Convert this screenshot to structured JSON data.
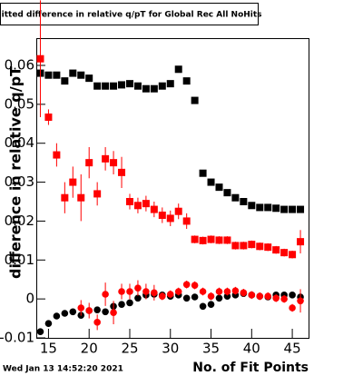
{
  "chart_data": {
    "type": "scatter",
    "title": "Fitted difference in relative q/pT for Global Rec All NoHits",
    "x_label": "No. of Fit Points",
    "y_label": "difference in relative q/pT",
    "timestamp": "Wed Jan 13 14:52:20 2021",
    "x": [
      14,
      15,
      16,
      17,
      18,
      19,
      20,
      21,
      22,
      23,
      24,
      25,
      26,
      27,
      28,
      29,
      30,
      31,
      32,
      33,
      34,
      35,
      36,
      37,
      38,
      39,
      40,
      41,
      42,
      43,
      44,
      45,
      46
    ],
    "xlim": [
      13.5,
      47
    ],
    "xticks": [
      15,
      20,
      25,
      30,
      35,
      40,
      45
    ],
    "ylim": [
      -0.01,
      0.067
    ],
    "yticks": [
      -0.01,
      0,
      0.01,
      0.02,
      0.03,
      0.04,
      0.05,
      0.06
    ],
    "series": [
      {
        "marker": "square",
        "color": "#000000",
        "values": [
          0.058,
          0.0575,
          0.0575,
          0.056,
          0.058,
          0.0575,
          0.0567,
          0.0547,
          0.0547,
          0.0547,
          0.055,
          0.0553,
          0.0547,
          0.054,
          0.054,
          0.0547,
          0.0553,
          0.059,
          0.056,
          0.051,
          0.0323,
          0.03,
          0.0287,
          0.0273,
          0.026,
          0.025,
          0.024,
          0.0235,
          0.0235,
          0.0233,
          0.023,
          0.023,
          0.023
        ]
      },
      {
        "marker": "square",
        "color": "#ff0000",
        "values": [
          0.0617,
          0.0467,
          0.037,
          0.026,
          0.03,
          0.026,
          0.035,
          0.027,
          0.036,
          0.035,
          0.0325,
          0.025,
          0.024,
          0.0245,
          0.023,
          0.0215,
          0.0207,
          0.0225,
          0.02,
          0.0153,
          0.015,
          0.0153,
          0.0151,
          0.0151,
          0.0137,
          0.0137,
          0.014,
          0.0135,
          0.0133,
          0.0126,
          0.0119,
          0.0114,
          0.0147
        ],
        "errors": [
          0.015,
          0.002,
          0.003,
          0.004,
          0.004,
          0.006,
          0.004,
          0.003,
          0.003,
          0.003,
          0.004,
          0.002,
          0.002,
          0.002,
          0.002,
          0.002,
          0.002,
          0.002,
          0.002,
          0.001,
          0.001,
          0.001,
          0.001,
          0.001,
          0.001,
          0.001,
          0.001,
          0.001,
          0.001,
          0.001,
          0.001,
          0.001,
          0.003
        ]
      },
      {
        "marker": "circle",
        "color": "#000000",
        "values": [
          -0.0084,
          -0.0063,
          -0.0044,
          -0.0037,
          -0.0033,
          -0.0042,
          -0.003,
          -0.0028,
          -0.0033,
          -0.0019,
          -0.0014,
          -0.001,
          0.0002,
          0.001,
          0.0012,
          0.001,
          0.0007,
          0.001,
          0.0002,
          0.0005,
          -0.0019,
          -0.0014,
          0.0002,
          0.0007,
          0.001,
          0.0014,
          0.001,
          0.0007,
          0.0005,
          0.001,
          0.001,
          0.001,
          0.0005
        ]
      },
      {
        "marker": "circle",
        "color": "#ff0000",
        "values": [
          null,
          null,
          null,
          null,
          null,
          -0.0023,
          -0.003,
          -0.006,
          0.0012,
          -0.0035,
          0.0019,
          0.0019,
          0.0028,
          0.0019,
          0.0016,
          0.0007,
          0.0012,
          0.0019,
          0.0037,
          0.0035,
          0.0019,
          0.0007,
          0.0019,
          0.0019,
          0.0021,
          0.0016,
          0.001,
          0.0007,
          0.0007,
          0.0002,
          0.0,
          -0.0023,
          -0.0005
        ],
        "errors": [
          null,
          null,
          null,
          null,
          null,
          0.002,
          0.002,
          0.002,
          0.003,
          0.003,
          0.002,
          0.002,
          0.002,
          0.002,
          0.002,
          0.001,
          0.001,
          0.001,
          0.001,
          0.001,
          0.001,
          0.001,
          0.001,
          0.001,
          0.001,
          0.001,
          0.001,
          0.001,
          0.001,
          0.001,
          0.001,
          0.001,
          0.003
        ]
      }
    ]
  }
}
